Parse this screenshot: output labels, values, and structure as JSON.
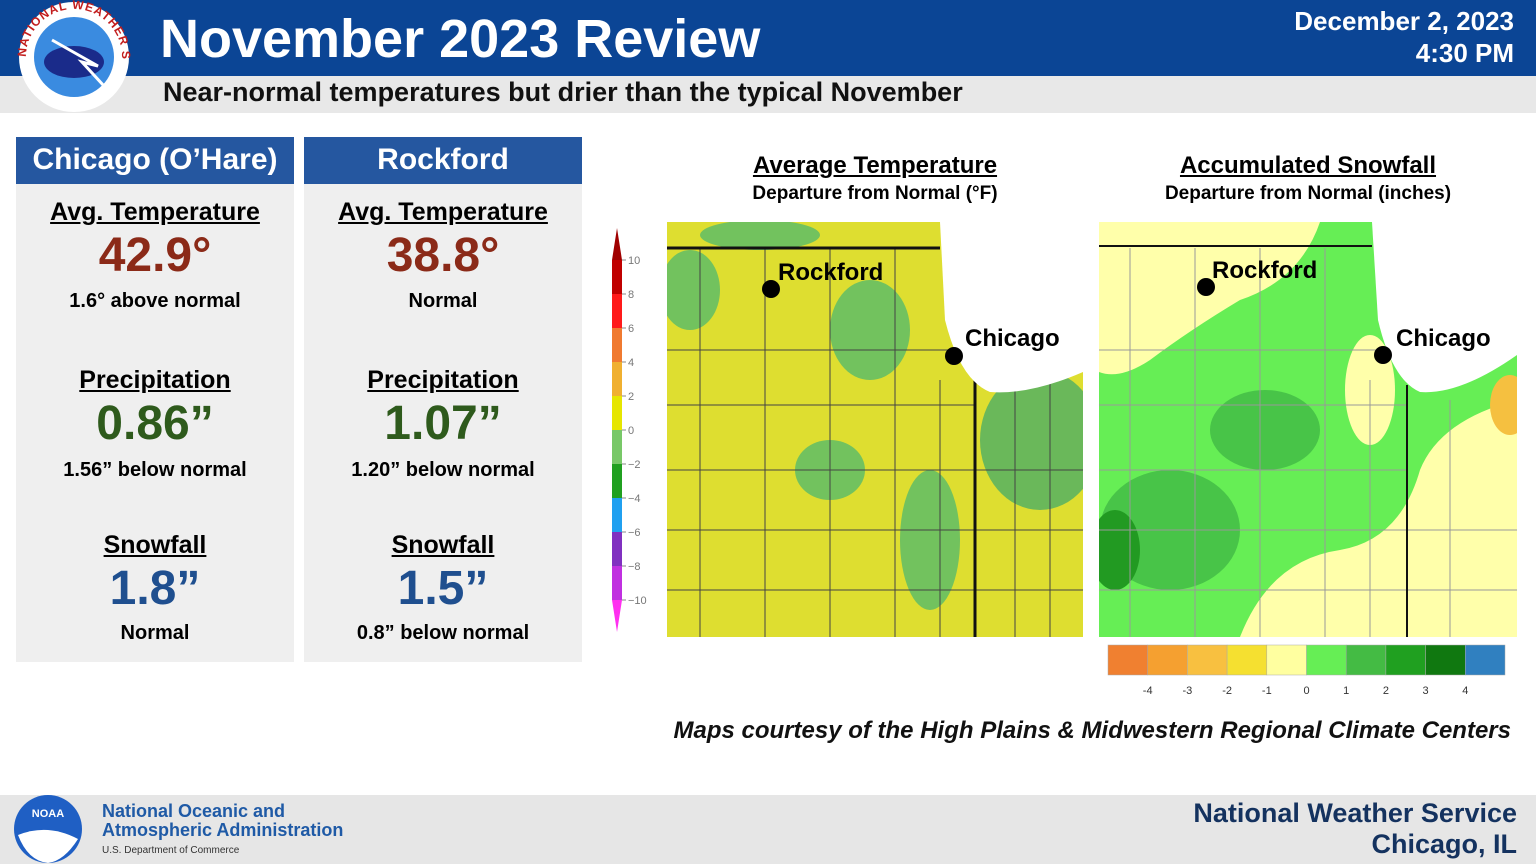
{
  "header": {
    "logo_text": "NATIONAL WEATHER SERVICE",
    "title": "November 2023 Review",
    "date": "December 2, 2023",
    "time": "4:30 PM",
    "subtitle": "Near-normal temperatures but drier than the typical November"
  },
  "stations": [
    {
      "name": "Chicago (O’Hare)",
      "stats": [
        {
          "label": "Avg. Temperature",
          "value": "42.9°",
          "note": "1.6° above normal"
        },
        {
          "label": "Precipitation",
          "value": "0.86”",
          "note": "1.56” below normal"
        },
        {
          "label": "Snowfall",
          "value": "1.8”",
          "note": "Normal"
        }
      ]
    },
    {
      "name": "Rockford",
      "stats": [
        {
          "label": "Avg. Temperature",
          "value": "38.8°",
          "note": "Normal"
        },
        {
          "label": "Precipitation",
          "value": "1.07”",
          "note": "1.20” below normal"
        },
        {
          "label": "Snowfall",
          "value": "1.5”",
          "note": "0.8” below normal"
        }
      ]
    }
  ],
  "maps": [
    {
      "title": "Average Temperature",
      "subtitle": "Departure from Normal (°F)",
      "cities": [
        "Rockford",
        "Chicago"
      ],
      "scale": [
        "10",
        "8",
        "6",
        "4",
        "2",
        "0",
        "−2",
        "−4",
        "−6",
        "−8",
        "−10"
      ]
    },
    {
      "title": "Accumulated Snowfall",
      "subtitle": "Departure from Normal (inches)",
      "cities": [
        "Rockford",
        "Chicago"
      ],
      "scale": [
        "-4",
        "-3",
        "-2",
        "-1",
        "0",
        "1",
        "2",
        "3",
        "4"
      ]
    }
  ],
  "credit": "Maps courtesy of the High Plains & Midwestern Regional Climate Centers",
  "footer": {
    "noaa_logo": "NOAA",
    "agency_line1": "National Oceanic and",
    "agency_line2": "Atmospheric Administration",
    "department": "U.S. Department of Commerce",
    "office": "National Weather Service",
    "location": "Chicago, IL"
  }
}
